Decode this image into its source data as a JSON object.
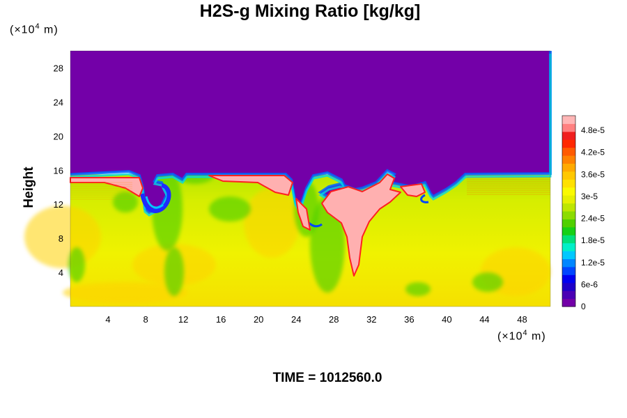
{
  "chart_data": {
    "type": "heatmap",
    "title": "H2S-g Mixing Ratio [kg/kg]",
    "ylabel": "Height",
    "x_unit": {
      "prefix": "(×10",
      "exp": "4",
      "suffix": " m)"
    },
    "y_unit": {
      "prefix": "(×10",
      "exp": "4",
      "suffix": " m)"
    },
    "xlim": [
      0,
      51
    ],
    "ylim": [
      0,
      30
    ],
    "x_ticks": [
      4,
      8,
      12,
      16,
      20,
      24,
      28,
      32,
      36,
      40,
      44,
      48
    ],
    "y_ticks": [
      4,
      8,
      12,
      16,
      20,
      24,
      28
    ],
    "colorbar": {
      "range": [
        0,
        5.2e-05
      ],
      "labels": [
        "0",
        "6e-6",
        "1.2e-5",
        "1.8e-5",
        "2.4e-5",
        "3e-5",
        "3.6e-5",
        "4.2e-5",
        "4.8e-5"
      ],
      "label_values": [
        0,
        6e-06,
        1.2e-05,
        1.8e-05,
        2.4e-05,
        3e-05,
        3.6e-05,
        4.2e-05,
        4.8e-05
      ],
      "colors": [
        "#7300a8",
        "#4b00b4",
        "#1e00c8",
        "#0000f0",
        "#0046ff",
        "#0087ff",
        "#00c8ff",
        "#00f0c8",
        "#00e07a",
        "#16d016",
        "#50d000",
        "#8cdc00",
        "#bee600",
        "#e6f000",
        "#fafa00",
        "#ffe100",
        "#ffc800",
        "#ffaa00",
        "#ff8200",
        "#ff5a00",
        "#ff2800",
        "#f01e1e",
        "#ff8080",
        "#ffb6b6"
      ]
    },
    "time_label": "TIME = 1012560.0"
  }
}
